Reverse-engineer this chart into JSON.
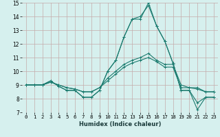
{
  "title": "",
  "xlabel": "Humidex (Indice chaleur)",
  "xlim": [
    -0.5,
    23.5
  ],
  "ylim": [
    7,
    15
  ],
  "yticks": [
    7,
    8,
    9,
    10,
    11,
    12,
    13,
    14,
    15
  ],
  "xticks": [
    0,
    1,
    2,
    3,
    4,
    5,
    6,
    7,
    8,
    9,
    10,
    11,
    12,
    13,
    14,
    15,
    16,
    17,
    18,
    19,
    20,
    21,
    22,
    23
  ],
  "line_color": "#1a7a6e",
  "bg_color": "#d6f0ee",
  "grid_color": "#c4aaaa",
  "lines": [
    [
      9.0,
      9.0,
      9.0,
      9.3,
      8.9,
      8.6,
      8.6,
      8.1,
      8.1,
      8.6,
      10.0,
      10.8,
      12.5,
      13.8,
      13.8,
      15.0,
      13.3,
      12.2,
      10.6,
      8.6,
      8.6,
      7.2,
      8.1,
      8.1
    ],
    [
      9.0,
      9.0,
      9.0,
      9.3,
      8.9,
      8.6,
      8.6,
      8.1,
      8.1,
      8.6,
      10.0,
      10.8,
      12.5,
      13.8,
      14.0,
      14.8,
      13.3,
      12.2,
      10.6,
      8.6,
      8.6,
      7.7,
      8.1,
      8.1
    ],
    [
      9.0,
      9.0,
      9.0,
      9.2,
      9.0,
      8.8,
      8.7,
      8.5,
      8.5,
      8.8,
      9.5,
      10.0,
      10.5,
      10.8,
      11.0,
      11.3,
      10.8,
      10.5,
      10.5,
      9.0,
      8.8,
      8.8,
      8.5,
      8.5
    ],
    [
      9.0,
      9.0,
      9.0,
      9.2,
      9.0,
      8.8,
      8.7,
      8.5,
      8.5,
      8.8,
      9.3,
      9.8,
      10.3,
      10.6,
      10.8,
      11.0,
      10.7,
      10.3,
      10.3,
      8.8,
      8.8,
      8.7,
      8.5,
      8.5
    ]
  ],
  "x_values": [
    0,
    1,
    2,
    3,
    4,
    5,
    6,
    7,
    8,
    9,
    10,
    11,
    12,
    13,
    14,
    15,
    16,
    17,
    18,
    19,
    20,
    21,
    22,
    23
  ],
  "linewidth": 0.8,
  "markersize": 2.5,
  "xlabel_fontsize": 6.0,
  "tick_fontsize": 5.2
}
